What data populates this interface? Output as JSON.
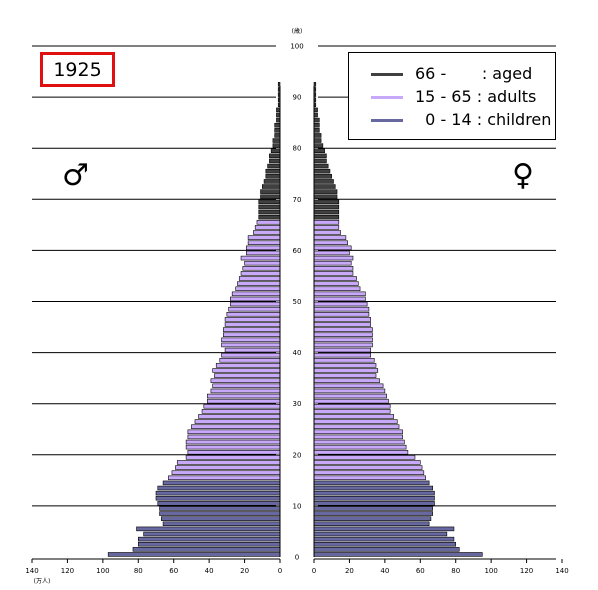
{
  "title": "1925",
  "male_symbol": "♂",
  "female_symbol": "♀",
  "age_axis_unit": "(歳)",
  "population_unit": "(万人)",
  "age_ticks": [
    0,
    10,
    20,
    30,
    40,
    50,
    60,
    70,
    80,
    90,
    100
  ],
  "population_ticks": [
    140,
    120,
    100,
    80,
    60,
    40,
    20,
    0
  ],
  "population_ticks_right": [
    0,
    20,
    40,
    60,
    80,
    100,
    120,
    140
  ],
  "colors": {
    "aged": "#404040",
    "adults": "#c8a8f8",
    "children": "#6868a0",
    "legend_aged": "#404040",
    "legend_adults": "#c8a8f8",
    "legend_children": "#6868a0",
    "year_box_border": "#e01010"
  },
  "legend": [
    {
      "key": "aged",
      "label": "66 -       : aged"
    },
    {
      "key": "adults",
      "label": "15 - 65 : adults"
    },
    {
      "key": "children",
      "label": "  0 - 14 : children"
    }
  ],
  "chart_data": {
    "type": "bar",
    "title": "1925",
    "orientation": "horizontal-pyramid",
    "xlim": [
      0,
      140
    ],
    "ylim": [
      0,
      100
    ],
    "categories": [
      0,
      1,
      2,
      3,
      4,
      5,
      6,
      7,
      8,
      9,
      10,
      11,
      12,
      13,
      14,
      15,
      16,
      17,
      18,
      19,
      20,
      21,
      22,
      23,
      24,
      25,
      26,
      27,
      28,
      29,
      30,
      31,
      32,
      33,
      34,
      35,
      36,
      37,
      38,
      39,
      40,
      41,
      42,
      43,
      44,
      45,
      46,
      47,
      48,
      49,
      50,
      51,
      52,
      53,
      54,
      55,
      56,
      57,
      58,
      59,
      60,
      61,
      62,
      63,
      64,
      65,
      66,
      67,
      68,
      69,
      70,
      71,
      72,
      73,
      74,
      75,
      76,
      77,
      78,
      79,
      80,
      81,
      82,
      83,
      84,
      85,
      86,
      87,
      88,
      89,
      90,
      91,
      92
    ],
    "series": [
      {
        "name": "♂",
        "values": [
          97,
          83,
          80,
          80,
          77,
          81,
          66,
          67,
          68,
          68,
          69,
          70,
          70,
          69,
          66,
          63,
          61,
          59,
          58,
          53,
          52,
          53,
          53,
          52,
          52,
          50,
          48,
          46,
          44,
          43,
          41,
          41,
          39,
          38,
          39,
          37,
          38,
          36,
          34,
          33,
          31,
          33,
          33,
          32,
          32,
          31,
          31,
          30,
          29,
          28,
          28,
          27,
          25,
          24,
          23,
          22,
          21,
          20,
          22,
          19,
          19,
          18,
          18,
          15,
          14,
          13,
          12,
          12,
          12,
          12,
          11,
          11,
          10,
          9,
          8,
          8,
          7,
          6,
          6,
          5,
          4,
          4,
          3,
          3,
          3,
          2,
          2,
          2,
          1,
          1,
          1,
          1,
          1
        ]
      },
      {
        "name": "♀",
        "values": [
          95,
          82,
          80,
          79,
          75,
          79,
          65,
          66,
          67,
          67,
          68,
          68,
          68,
          67,
          65,
          63,
          62,
          61,
          60,
          57,
          53,
          52,
          51,
          50,
          50,
          48,
          47,
          45,
          43,
          43,
          42,
          41,
          40,
          39,
          37,
          35,
          36,
          35,
          34,
          32,
          32,
          33,
          33,
          33,
          33,
          32,
          32,
          31,
          31,
          30,
          29,
          29,
          26,
          25,
          24,
          22,
          22,
          21,
          22,
          20,
          21,
          19,
          18,
          15,
          14,
          14,
          14,
          14,
          14,
          14,
          13,
          13,
          12,
          11,
          10,
          9,
          8,
          7,
          7,
          6,
          5,
          4,
          4,
          3,
          3,
          3,
          2,
          2,
          1,
          1,
          1,
          1,
          1
        ]
      }
    ]
  }
}
